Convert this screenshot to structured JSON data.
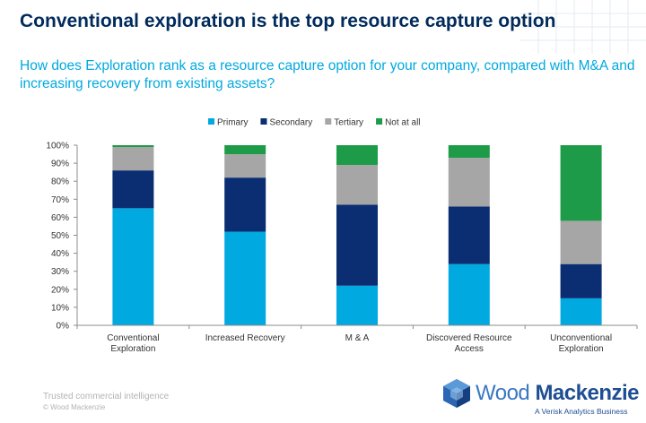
{
  "header": {
    "title": "Conventional exploration is the top resource capture option",
    "subtitle": "How does Exploration rank as a resource capture option for your company, compared with M&A and increasing recovery from existing assets?"
  },
  "footer": {
    "tagline": "Trusted commercial intelligence",
    "copyright": "© Wood Mackenzie"
  },
  "logo": {
    "name_part1": "Wood",
    "name_part2": "Mackenzie",
    "tagline": "A Verisk Analytics Business"
  },
  "chart_data": {
    "type": "bar",
    "stacked": true,
    "categories": [
      [
        "Conventional",
        "Exploration"
      ],
      [
        "Increased Recovery"
      ],
      [
        "M & A"
      ],
      [
        "Discovered Resource",
        "Access"
      ],
      [
        "Unconventional",
        "Exploration"
      ]
    ],
    "series": [
      {
        "name": "Primary",
        "color": "#00a9e0",
        "values": [
          65,
          52,
          22,
          34,
          15
        ]
      },
      {
        "name": "Secondary",
        "color": "#0b2d72",
        "values": [
          21,
          30,
          45,
          32,
          19
        ]
      },
      {
        "name": "Tertiary",
        "color": "#a6a6a6",
        "values": [
          13,
          13,
          22,
          27,
          24
        ]
      },
      {
        "name": "Not at all",
        "color": "#1e9b48",
        "values": [
          1,
          5,
          11,
          7,
          42
        ]
      }
    ],
    "ylim": [
      0,
      100
    ],
    "yticks": [
      "0%",
      "10%",
      "20%",
      "30%",
      "40%",
      "50%",
      "60%",
      "70%",
      "80%",
      "90%",
      "100%"
    ],
    "legend": "top",
    "grid": false
  }
}
